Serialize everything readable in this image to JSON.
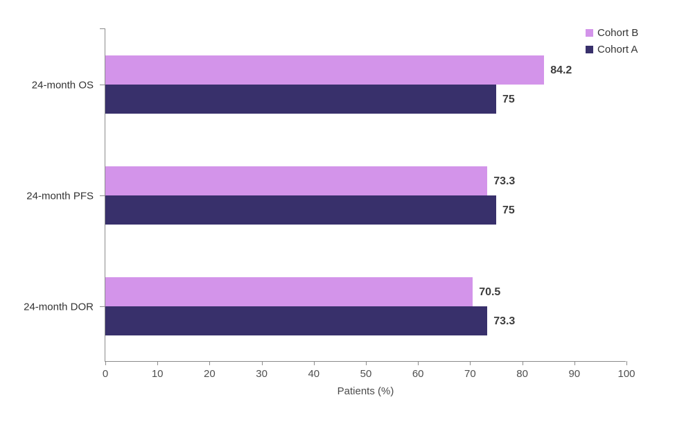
{
  "chart_data": {
    "type": "bar",
    "orientation": "horizontal",
    "title": "",
    "xlabel": "Patients (%)",
    "ylabel": "",
    "xlim": [
      0,
      100
    ],
    "xticks": [
      0,
      10,
      20,
      30,
      40,
      50,
      60,
      70,
      80,
      90,
      100
    ],
    "grid": false,
    "value_labels": true,
    "legend_position": "top-right",
    "categories": [
      "24-month OS",
      "24-month PFS",
      "24-month DOR"
    ],
    "series": [
      {
        "name": "Cohort B",
        "color": "#d394ea",
        "values": [
          84.2,
          73.3,
          70.5
        ]
      },
      {
        "name": "Cohort A",
        "color": "#38306b",
        "values": [
          75,
          75,
          73.3
        ]
      }
    ]
  },
  "legend": {
    "items": [
      {
        "label": "Cohort B",
        "color": "#d394ea"
      },
      {
        "label": "Cohort A",
        "color": "#38306b"
      }
    ]
  },
  "colors": {
    "axis_line": "#8a8a8a",
    "category_label": "#333333",
    "tick_label": "#4f4f4f",
    "value_label": "#3d3d3d",
    "background": "#ffffff"
  }
}
